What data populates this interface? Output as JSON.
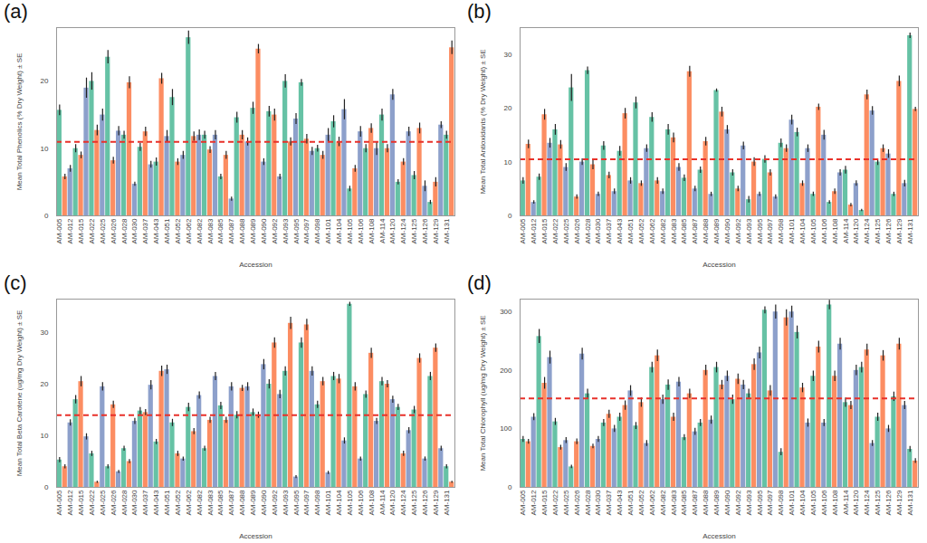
{
  "chart_data": [
    {
      "type": "bar",
      "title": "(a)",
      "x_label": "Accession",
      "y_label": "Mean Total Phenolics (% Dry Weight) ± SE",
      "categories": [
        "AM-005",
        null,
        "AM-012",
        null,
        "AM-015",
        null,
        "AM-022",
        null,
        "AM-025",
        null,
        "AM-026",
        null,
        "AM-028",
        null,
        "AM-030",
        null,
        "AM-037",
        null,
        "AM-043",
        null,
        "AM-051",
        null,
        "AM-052",
        null,
        "AM-062",
        null,
        "AM-082",
        null,
        "AM-083",
        null,
        "AM-085",
        null,
        "AM-087",
        null,
        "AM-088",
        null,
        "AM-089",
        null,
        "AM-090",
        null,
        "AM-092",
        null,
        "AM-093",
        null,
        "AM-095",
        null,
        "AM-097",
        null,
        "AM-098",
        null,
        "AM-101",
        null,
        "AM-104",
        null,
        "AM-105",
        null,
        "AM-106",
        null,
        "AM-108",
        null,
        "AM-114",
        null,
        "AM-120",
        null,
        "AM-124",
        null,
        "AM-125",
        null,
        "AM-126",
        null,
        "AM-129",
        null,
        "AM-131",
        null
      ],
      "values": [
        15.7,
        5.8,
        7.0,
        10.0,
        9.0,
        19.0,
        20.0,
        12.7,
        15.0,
        23.6,
        8.2,
        12.6,
        12.0,
        19.8,
        4.7,
        10.2,
        12.5,
        7.6,
        8.0,
        20.4,
        11.8,
        17.6,
        8.0,
        9.0,
        26.5,
        11.8,
        12.0,
        12.0,
        9.8,
        12.0,
        5.8,
        9.0,
        2.5,
        14.6,
        12.0,
        11.0,
        16.0,
        24.8,
        8.0,
        15.5,
        15.0,
        5.8,
        20.0,
        11.0,
        14.4,
        19.8,
        11.4,
        9.6,
        10.0,
        9.0,
        12.0,
        14.0,
        11.0,
        15.8,
        4.0,
        7.0,
        12.5,
        10.0,
        13.0,
        10.0,
        15.0,
        10.0,
        18.0,
        5.0,
        8.0,
        12.5,
        6.0,
        13.0,
        4.4,
        2.0,
        5.0,
        13.5,
        12.0,
        25.0
      ],
      "errors": [
        0.8,
        0.4,
        0.5,
        0.6,
        0.5,
        1.5,
        1.3,
        0.8,
        0.9,
        1.0,
        0.5,
        0.7,
        0.6,
        0.9,
        0.3,
        0.6,
        0.7,
        0.5,
        0.6,
        0.8,
        0.9,
        1.2,
        0.5,
        0.6,
        1.0,
        0.7,
        0.8,
        0.6,
        0.5,
        0.7,
        0.4,
        0.6,
        0.3,
        0.8,
        0.7,
        0.6,
        0.9,
        0.7,
        0.5,
        0.8,
        0.9,
        0.4,
        1.0,
        0.6,
        0.8,
        0.5,
        0.7,
        0.6,
        0.5,
        0.6,
        1.0,
        0.9,
        0.7,
        1.5,
        0.4,
        0.5,
        0.8,
        0.6,
        0.7,
        1.0,
        0.9,
        0.6,
        0.8,
        0.4,
        0.5,
        0.7,
        0.6,
        0.8,
        0.8,
        0.3,
        0.7,
        0.5,
        0.6,
        1.0
      ],
      "colors": [
        "#66c2a5",
        "#fc8d62",
        "#8da0cb",
        "#66c2a5",
        "#fc8d62",
        "#8da0cb",
        "#66c2a5",
        "#fc8d62",
        "#8da0cb",
        "#66c2a5",
        "#fc8d62",
        "#8da0cb",
        "#66c2a5",
        "#fc8d62",
        "#8da0cb",
        "#66c2a5",
        "#fc8d62",
        "#8da0cb",
        "#66c2a5",
        "#fc8d62",
        "#8da0cb",
        "#66c2a5",
        "#fc8d62",
        "#8da0cb",
        "#66c2a5",
        "#fc8d62",
        "#8da0cb",
        "#66c2a5",
        "#fc8d62",
        "#8da0cb",
        "#66c2a5",
        "#fc8d62",
        "#8da0cb",
        "#66c2a5",
        "#fc8d62",
        "#8da0cb",
        "#66c2a5",
        "#fc8d62",
        "#8da0cb",
        "#66c2a5",
        "#fc8d62",
        "#8da0cb",
        "#66c2a5",
        "#fc8d62",
        "#8da0cb",
        "#66c2a5",
        "#fc8d62",
        "#8da0cb",
        "#66c2a5",
        "#fc8d62",
        "#8da0cb",
        "#66c2a5",
        "#fc8d62",
        "#8da0cb",
        "#66c2a5",
        "#fc8d62",
        "#8da0cb",
        "#66c2a5",
        "#fc8d62",
        "#8da0cb",
        "#66c2a5",
        "#fc8d62",
        "#8da0cb",
        "#66c2a5",
        "#fc8d62",
        "#8da0cb",
        "#66c2a5",
        "#fc8d62",
        "#8da0cb",
        "#66c2a5",
        "#fc8d62",
        "#8da0cb",
        "#66c2a5",
        "#fc8d62"
      ],
      "mean_line": 11.0,
      "ylim": [
        0,
        28
      ],
      "yticks": [
        0,
        10,
        20
      ]
    },
    {
      "type": "bar",
      "title": "(b)",
      "x_label": "Accession",
      "y_label": "Mean Total Antioxidants (% Dry Weight) ± SE",
      "categories": [
        "AM-005",
        null,
        "AM-012",
        null,
        "AM-015",
        null,
        "AM-022",
        null,
        "AM-025",
        null,
        "AM-026",
        null,
        "AM-028",
        null,
        "AM-030",
        null,
        "AM-037",
        null,
        "AM-043",
        null,
        "AM-051",
        null,
        "AM-052",
        null,
        "AM-062",
        null,
        "AM-082",
        null,
        "AM-083",
        null,
        "AM-085",
        null,
        "AM-087",
        null,
        "AM-088",
        null,
        "AM-089",
        null,
        "AM-090",
        null,
        "AM-092",
        null,
        "AM-093",
        null,
        "AM-095",
        null,
        "AM-097",
        null,
        "AM-098",
        null,
        "AM-101",
        null,
        "AM-104",
        null,
        "AM-105",
        null,
        "AM-106",
        null,
        "AM-108",
        null,
        "AM-114",
        null,
        "AM-120",
        null,
        "AM-124",
        null,
        "AM-125",
        null,
        "AM-126",
        null,
        "AM-129",
        null,
        "AM-131",
        null
      ],
      "values": [
        6.5,
        13.3,
        2.5,
        7.2,
        18.8,
        13.5,
        16.0,
        13.2,
        9.0,
        23.8,
        3.5,
        10.0,
        27.0,
        9.5,
        4.0,
        13.0,
        7.5,
        4.5,
        12.0,
        19.0,
        6.5,
        21.0,
        6.0,
        12.5,
        18.3,
        6.5,
        4.5,
        16.0,
        14.5,
        9.0,
        7.0,
        26.8,
        5.0,
        8.5,
        13.8,
        4.0,
        23.3,
        19.3,
        16.0,
        8.0,
        5.0,
        13.0,
        3.0,
        10.0,
        4.0,
        10.5,
        8.0,
        3.5,
        13.5,
        12.5,
        17.8,
        15.5,
        6.0,
        12.5,
        4.0,
        20.2,
        15.0,
        2.5,
        4.5,
        8.0,
        8.5,
        2.0,
        6.0,
        1.0,
        22.5,
        19.5,
        10.0,
        12.5,
        11.5,
        4.0,
        25.0,
        6.0,
        33.5,
        19.8
      ],
      "errors": [
        0.6,
        0.8,
        0.3,
        0.6,
        1.0,
        0.9,
        1.0,
        0.8,
        0.7,
        2.5,
        0.4,
        0.6,
        0.7,
        0.9,
        0.4,
        0.8,
        0.6,
        0.5,
        0.9,
        1.0,
        0.6,
        1.1,
        0.5,
        0.7,
        0.9,
        0.6,
        0.5,
        1.0,
        0.9,
        0.7,
        0.6,
        1.0,
        0.5,
        0.6,
        0.8,
        0.4,
        0.3,
        0.9,
        0.8,
        0.6,
        0.5,
        0.7,
        0.6,
        0.8,
        0.4,
        0.7,
        0.6,
        0.4,
        0.8,
        0.7,
        0.9,
        0.8,
        0.5,
        0.7,
        0.4,
        0.6,
        0.9,
        0.3,
        0.5,
        0.6,
        0.7,
        0.3,
        0.5,
        0.2,
        0.9,
        0.8,
        0.6,
        0.7,
        0.8,
        0.4,
        1.0,
        0.6,
        0.5,
        0.4
      ],
      "colors": [
        "#66c2a5",
        "#fc8d62",
        "#8da0cb",
        "#66c2a5",
        "#fc8d62",
        "#8da0cb",
        "#66c2a5",
        "#fc8d62",
        "#8da0cb",
        "#66c2a5",
        "#fc8d62",
        "#8da0cb",
        "#66c2a5",
        "#fc8d62",
        "#8da0cb",
        "#66c2a5",
        "#fc8d62",
        "#8da0cb",
        "#66c2a5",
        "#fc8d62",
        "#8da0cb",
        "#66c2a5",
        "#fc8d62",
        "#8da0cb",
        "#66c2a5",
        "#fc8d62",
        "#8da0cb",
        "#66c2a5",
        "#fc8d62",
        "#8da0cb",
        "#66c2a5",
        "#fc8d62",
        "#8da0cb",
        "#66c2a5",
        "#fc8d62",
        "#8da0cb",
        "#66c2a5",
        "#fc8d62",
        "#8da0cb",
        "#66c2a5",
        "#fc8d62",
        "#8da0cb",
        "#66c2a5",
        "#fc8d62",
        "#8da0cb",
        "#66c2a5",
        "#fc8d62",
        "#8da0cb",
        "#66c2a5",
        "#fc8d62",
        "#8da0cb",
        "#66c2a5",
        "#fc8d62",
        "#8da0cb",
        "#66c2a5",
        "#fc8d62",
        "#8da0cb",
        "#66c2a5",
        "#fc8d62",
        "#8da0cb",
        "#66c2a5",
        "#fc8d62",
        "#8da0cb",
        "#66c2a5",
        "#fc8d62",
        "#8da0cb",
        "#66c2a5",
        "#fc8d62",
        "#8da0cb",
        "#66c2a5",
        "#fc8d62",
        "#8da0cb",
        "#66c2a5",
        "#fc8d62"
      ],
      "mean_line": 10.5,
      "ylim": [
        0,
        35
      ],
      "yticks": [
        0,
        10,
        20,
        30
      ]
    },
    {
      "type": "bar",
      "title": "(c)",
      "x_label": "Accession",
      "y_label": "Mean Total Beta Carotene (ug/mg Dry Weight) ± SE",
      "categories": [
        "AM-005",
        null,
        "AM-012",
        null,
        "AM-015",
        null,
        "AM-022",
        null,
        "AM-025",
        null,
        "AM-026",
        null,
        "AM-028",
        null,
        "AM-030",
        null,
        "AM-037",
        null,
        "AM-043",
        null,
        "AM-051",
        null,
        "AM-052",
        null,
        "AM-062",
        null,
        "AM-082",
        null,
        "AM-083",
        null,
        "AM-085",
        null,
        "AM-087",
        null,
        "AM-088",
        null,
        "AM-089",
        null,
        "AM-090",
        null,
        "AM-092",
        null,
        "AM-093",
        null,
        "AM-095",
        null,
        "AM-097",
        null,
        "AM-098",
        null,
        "AM-101",
        null,
        "AM-104",
        null,
        "AM-105",
        null,
        "AM-106",
        null,
        "AM-108",
        null,
        "AM-114",
        null,
        "AM-120",
        null,
        "AM-124",
        null,
        "AM-125",
        null,
        "AM-126",
        null,
        "AM-129",
        null,
        "AM-131",
        null
      ],
      "values": [
        5.3,
        4.0,
        12.5,
        17.0,
        20.5,
        9.8,
        6.5,
        1.0,
        19.5,
        4.0,
        16.0,
        3.0,
        7.5,
        5.0,
        12.8,
        14.8,
        14.5,
        19.8,
        8.8,
        22.5,
        22.8,
        12.5,
        6.5,
        5.5,
        15.5,
        10.8,
        17.8,
        7.5,
        13.0,
        21.5,
        15.8,
        13.0,
        19.5,
        14.0,
        19.2,
        19.5,
        14.5,
        14.0,
        23.8,
        20.0,
        28.0,
        18.0,
        22.5,
        31.8,
        2.0,
        28.0,
        31.5,
        22.5,
        16.0,
        20.5,
        2.8,
        21.5,
        21.0,
        9.0,
        35.5,
        19.5,
        5.5,
        18.0,
        26.0,
        12.8,
        20.5,
        20.0,
        17.0,
        15.5,
        6.5,
        11.0,
        15.0,
        25.0,
        5.5,
        21.5,
        27.0,
        7.5,
        4.0,
        1.0
      ],
      "errors": [
        0.5,
        0.4,
        0.6,
        0.8,
        1.0,
        0.6,
        0.5,
        0.2,
        0.8,
        0.4,
        0.7,
        0.3,
        0.5,
        0.4,
        0.6,
        0.7,
        0.6,
        0.9,
        0.5,
        1.0,
        0.9,
        0.7,
        0.5,
        0.4,
        0.8,
        0.6,
        0.7,
        0.5,
        0.6,
        0.8,
        0.7,
        0.6,
        0.8,
        0.7,
        0.6,
        0.8,
        0.7,
        0.6,
        1.0,
        0.9,
        1.0,
        0.8,
        0.9,
        1.2,
        0.3,
        1.0,
        1.1,
        0.9,
        0.7,
        0.8,
        0.3,
        0.8,
        0.9,
        0.6,
        0.4,
        0.8,
        0.4,
        0.7,
        1.0,
        0.6,
        0.8,
        0.7,
        0.7,
        0.6,
        0.5,
        0.6,
        0.7,
        0.9,
        0.4,
        0.8,
        0.8,
        0.5,
        0.4,
        0.2
      ],
      "colors": [
        "#66c2a5",
        "#fc8d62",
        "#8da0cb",
        "#66c2a5",
        "#fc8d62",
        "#8da0cb",
        "#66c2a5",
        "#fc8d62",
        "#8da0cb",
        "#66c2a5",
        "#fc8d62",
        "#8da0cb",
        "#66c2a5",
        "#fc8d62",
        "#8da0cb",
        "#66c2a5",
        "#fc8d62",
        "#8da0cb",
        "#66c2a5",
        "#fc8d62",
        "#8da0cb",
        "#66c2a5",
        "#fc8d62",
        "#8da0cb",
        "#66c2a5",
        "#fc8d62",
        "#8da0cb",
        "#66c2a5",
        "#fc8d62",
        "#8da0cb",
        "#66c2a5",
        "#fc8d62",
        "#8da0cb",
        "#66c2a5",
        "#fc8d62",
        "#8da0cb",
        "#66c2a5",
        "#fc8d62",
        "#8da0cb",
        "#66c2a5",
        "#fc8d62",
        "#8da0cb",
        "#66c2a5",
        "#fc8d62",
        "#8da0cb",
        "#66c2a5",
        "#fc8d62",
        "#8da0cb",
        "#66c2a5",
        "#fc8d62",
        "#8da0cb",
        "#66c2a5",
        "#fc8d62",
        "#8da0cb",
        "#66c2a5",
        "#fc8d62",
        "#8da0cb",
        "#66c2a5",
        "#fc8d62",
        "#8da0cb",
        "#66c2a5",
        "#fc8d62",
        "#8da0cb",
        "#66c2a5",
        "#fc8d62",
        "#8da0cb",
        "#66c2a5",
        "#fc8d62",
        "#8da0cb",
        "#66c2a5",
        "#fc8d62",
        "#8da0cb",
        "#66c2a5",
        "#fc8d62"
      ],
      "mean_line": 14.0,
      "ylim": [
        0,
        36.5
      ],
      "yticks": [
        0,
        10,
        20,
        30
      ]
    },
    {
      "type": "bar",
      "title": "(d)",
      "x_label": "Accession",
      "y_label": "Mean Total Chlorophyll (ug/mg Dry Weight) ± SE",
      "categories": [
        "AM-005",
        null,
        "AM-012",
        null,
        "AM-015",
        null,
        "AM-022",
        null,
        "AM-025",
        null,
        "AM-026",
        null,
        "AM-028",
        null,
        "AM-030",
        null,
        "AM-037",
        null,
        "AM-043",
        null,
        "AM-051",
        null,
        "AM-052",
        null,
        "AM-062",
        null,
        "AM-082",
        null,
        "AM-083",
        null,
        "AM-085",
        null,
        "AM-087",
        null,
        "AM-088",
        null,
        "AM-089",
        null,
        "AM-090",
        null,
        "AM-092",
        null,
        "AM-093",
        null,
        "AM-095",
        null,
        "AM-097",
        null,
        "AM-098",
        null,
        "AM-101",
        null,
        "AM-104",
        null,
        "AM-105",
        null,
        "AM-106",
        null,
        "AM-108",
        null,
        "AM-114",
        null,
        "AM-120",
        null,
        "AM-124",
        null,
        "AM-125",
        null,
        "AM-126",
        null,
        "AM-129",
        null,
        "AM-131",
        null
      ],
      "values": [
        82,
        78,
        120,
        258,
        178,
        222,
        112,
        68,
        80,
        35,
        78,
        228,
        160,
        70,
        82,
        110,
        125,
        100,
        120,
        140,
        165,
        105,
        145,
        75,
        205,
        225,
        150,
        175,
        120,
        180,
        85,
        160,
        95,
        110,
        200,
        115,
        205,
        175,
        190,
        150,
        185,
        175,
        160,
        210,
        230,
        303,
        165,
        300,
        60,
        290,
        300,
        265,
        170,
        110,
        190,
        240,
        110,
        312,
        190,
        245,
        145,
        140,
        200,
        205,
        235,
        75,
        120,
        225,
        100,
        155,
        245,
        140,
        65,
        45
      ],
      "errors": [
        5,
        4,
        6,
        12,
        10,
        11,
        6,
        4,
        5,
        3,
        5,
        10,
        8,
        4,
        5,
        6,
        7,
        6,
        7,
        8,
        9,
        6,
        8,
        5,
        9,
        10,
        8,
        9,
        7,
        8,
        5,
        8,
        6,
        6,
        9,
        7,
        9,
        8,
        9,
        8,
        9,
        8,
        8,
        10,
        10,
        6,
        9,
        12,
        6,
        14,
        10,
        11,
        8,
        7,
        9,
        10,
        6,
        8,
        9,
        10,
        8,
        7,
        9,
        9,
        10,
        5,
        7,
        9,
        6,
        8,
        10,
        7,
        5,
        4
      ],
      "colors": [
        "#66c2a5",
        "#fc8d62",
        "#8da0cb",
        "#66c2a5",
        "#fc8d62",
        "#8da0cb",
        "#66c2a5",
        "#fc8d62",
        "#8da0cb",
        "#66c2a5",
        "#fc8d62",
        "#8da0cb",
        "#66c2a5",
        "#fc8d62",
        "#8da0cb",
        "#66c2a5",
        "#fc8d62",
        "#8da0cb",
        "#66c2a5",
        "#fc8d62",
        "#8da0cb",
        "#66c2a5",
        "#fc8d62",
        "#8da0cb",
        "#66c2a5",
        "#fc8d62",
        "#8da0cb",
        "#66c2a5",
        "#fc8d62",
        "#8da0cb",
        "#66c2a5",
        "#fc8d62",
        "#8da0cb",
        "#66c2a5",
        "#fc8d62",
        "#8da0cb",
        "#66c2a5",
        "#fc8d62",
        "#8da0cb",
        "#66c2a5",
        "#fc8d62",
        "#8da0cb",
        "#66c2a5",
        "#fc8d62",
        "#8da0cb",
        "#66c2a5",
        "#fc8d62",
        "#8da0cb",
        "#66c2a5",
        "#fc8d62",
        "#8da0cb",
        "#66c2a5",
        "#fc8d62",
        "#8da0cb",
        "#66c2a5",
        "#fc8d62",
        "#8da0cb",
        "#66c2a5",
        "#fc8d62",
        "#8da0cb",
        "#66c2a5",
        "#fc8d62",
        "#8da0cb",
        "#66c2a5",
        "#fc8d62",
        "#8da0cb",
        "#66c2a5",
        "#fc8d62",
        "#8da0cb",
        "#66c2a5",
        "#fc8d62",
        "#8da0cb",
        "#66c2a5",
        "#fc8d62"
      ],
      "mean_line": 152,
      "ylim": [
        0,
        322
      ],
      "yticks": [
        0,
        100,
        200,
        300
      ]
    }
  ]
}
